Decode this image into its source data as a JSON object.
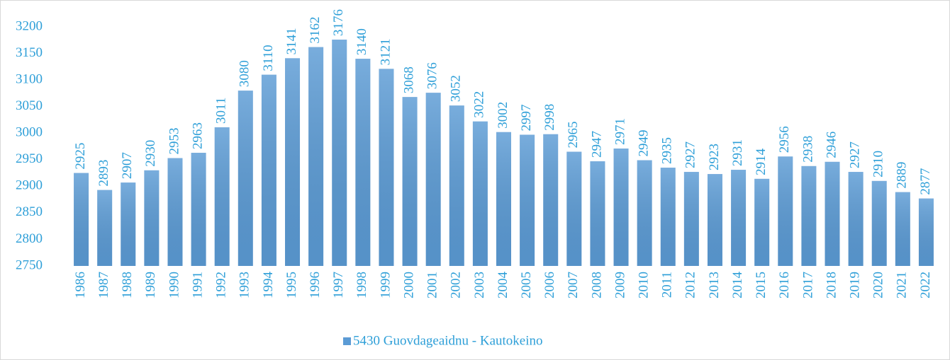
{
  "chart_data": {
    "type": "bar",
    "categories": [
      "1986",
      "1987",
      "1988",
      "1989",
      "1990",
      "1991",
      "1992",
      "1993",
      "1994",
      "1995",
      "1996",
      "1997",
      "1998",
      "1999",
      "2000",
      "2001",
      "2002",
      "2003",
      "2004",
      "2005",
      "2006",
      "2007",
      "2008",
      "2009",
      "2010",
      "2011",
      "2012",
      "2013",
      "2014",
      "2015",
      "2016",
      "2017",
      "2018",
      "2019",
      "2020",
      "2021",
      "2022"
    ],
    "series": [
      {
        "name": "5430 Guovdageaidnu - Kautokeino",
        "color": "#5b9bd5",
        "values": [
          2925,
          2893,
          2907,
          2930,
          2953,
          2963,
          3011,
          3080,
          3110,
          3141,
          3162,
          3176,
          3140,
          3121,
          3068,
          3076,
          3052,
          3022,
          3002,
          2997,
          2998,
          2965,
          2947,
          2971,
          2949,
          2935,
          2927,
          2923,
          2931,
          2914,
          2956,
          2938,
          2946,
          2927,
          2910,
          2889,
          2877
        ]
      }
    ],
    "ylim": [
      2750,
      3200
    ],
    "yticks": [
      2750,
      2800,
      2850,
      2900,
      2950,
      3000,
      3050,
      3100,
      3150,
      3200
    ],
    "grid": false,
    "legend": "bottom"
  }
}
